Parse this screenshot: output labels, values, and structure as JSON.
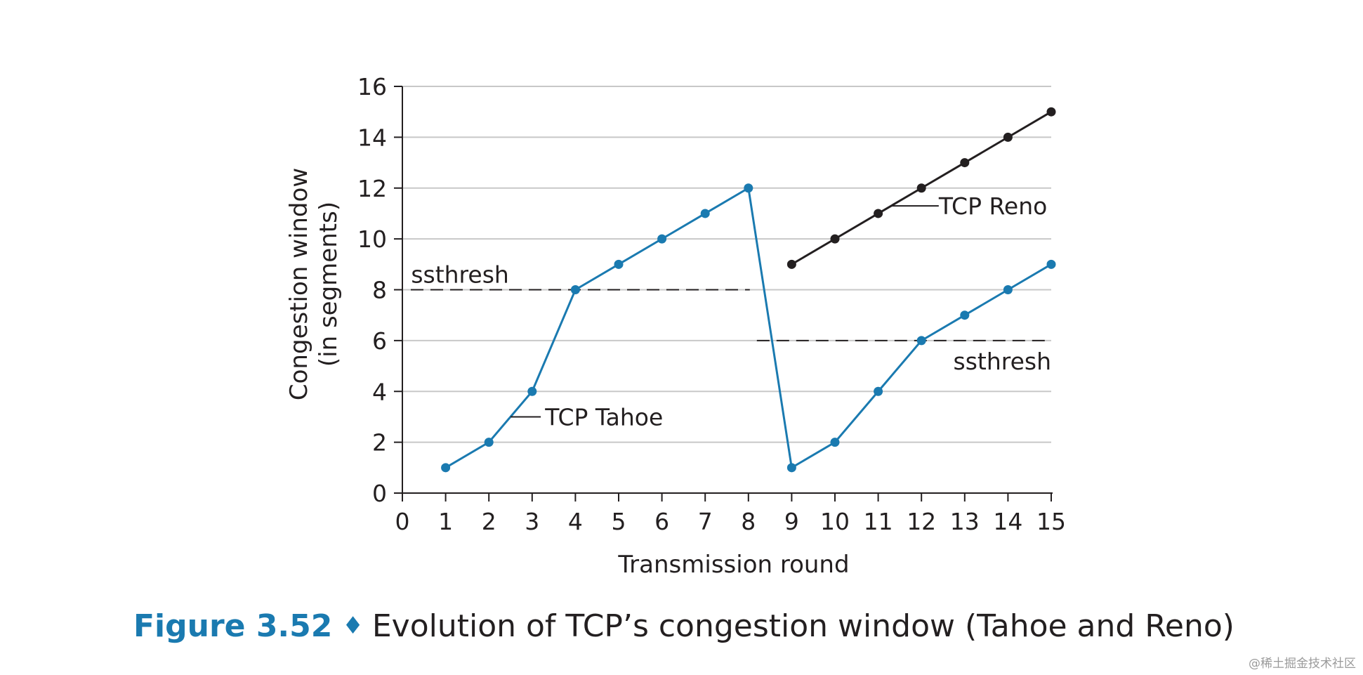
{
  "chart_data": {
    "type": "line",
    "xlabel": "Transmission round",
    "ylabel_line1": "Congestion window",
    "ylabel_line2": "(in segments)",
    "xlim": [
      0,
      15
    ],
    "ylim": [
      0,
      16
    ],
    "x_ticks": [
      0,
      1,
      2,
      3,
      4,
      5,
      6,
      7,
      8,
      9,
      10,
      11,
      12,
      13,
      14,
      15
    ],
    "y_ticks": [
      0,
      2,
      4,
      6,
      8,
      10,
      12,
      14,
      16
    ],
    "grid": "horizontal",
    "series": [
      {
        "name": "TCP Tahoe",
        "color": "#1a7ab0",
        "points": [
          [
            1,
            1
          ],
          [
            2,
            2
          ],
          [
            3,
            4
          ],
          [
            4,
            8
          ],
          [
            5,
            9
          ],
          [
            6,
            10
          ],
          [
            7,
            11
          ],
          [
            8,
            12
          ],
          [
            9,
            1
          ],
          [
            10,
            2
          ],
          [
            11,
            4
          ],
          [
            12,
            6
          ],
          [
            13,
            7
          ],
          [
            14,
            8
          ],
          [
            15,
            9
          ]
        ]
      },
      {
        "name": "TCP Reno",
        "color": "#231f20",
        "points": [
          [
            9,
            9
          ],
          [
            10,
            10
          ],
          [
            11,
            11
          ],
          [
            12,
            12
          ],
          [
            13,
            13
          ],
          [
            14,
            14
          ],
          [
            15,
            15
          ]
        ]
      }
    ],
    "thresholds": [
      {
        "label": "ssthresh",
        "y": 8,
        "x_from": 0,
        "x_to": 8
      },
      {
        "label": "ssthresh",
        "y": 6,
        "x_from": 8,
        "x_to": 15
      }
    ]
  },
  "caption": {
    "figure_number": "Figure 3.52",
    "separator": "♦",
    "text": "Evolution of TCP’s congestion window (Tahoe and Reno)"
  },
  "watermark": "@稀土掘金技术社区"
}
